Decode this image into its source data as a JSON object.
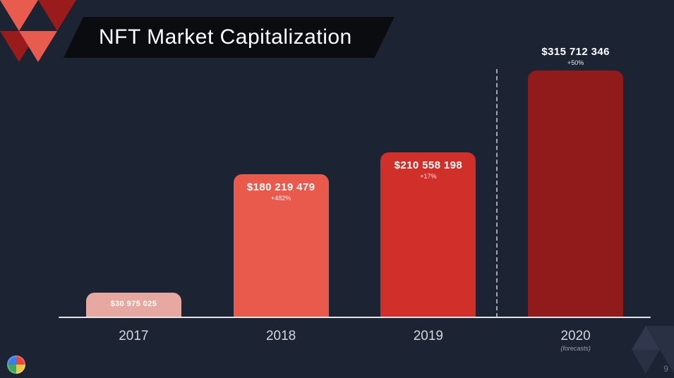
{
  "slide": {
    "title": "NFT Market Capitalization",
    "page_number": "9",
    "background_color": "#1c2333",
    "title_banner_bg": "#0b0c0f",
    "title_color": "#ffffff",
    "title_fontsize": 30
  },
  "chart": {
    "type": "bar",
    "axis_line_color": "#e3e5ea",
    "label_color": "#d4d6dd",
    "divider_after_index": 2,
    "divider_color": "#cfd2da",
    "bars": [
      {
        "year": "2017",
        "year_sub": "",
        "value_label": "$30 975 025",
        "pct_label": "",
        "height_pct": 10,
        "color": "#e7a8a2",
        "label_position": "inside-top",
        "small": true
      },
      {
        "year": "2018",
        "year_sub": "",
        "value_label": "$180 219 479",
        "pct_label": "+482%",
        "height_pct": 58,
        "color": "#e95a4d",
        "label_position": "inside-top",
        "small": false
      },
      {
        "year": "2019",
        "year_sub": "",
        "value_label": "$210 558 198",
        "pct_label": "+17%",
        "height_pct": 67,
        "color": "#d12f29",
        "label_position": "inside-top",
        "small": false
      },
      {
        "year": "2020",
        "year_sub": "(forecasts)",
        "value_label": "$315 712 346",
        "pct_label": "+50%",
        "height_pct": 100,
        "color": "#911a1a",
        "label_position": "outside-top",
        "small": false
      }
    ]
  },
  "decor": {
    "tri_colors": {
      "light": "#e85c50",
      "dark": "#991b1b"
    }
  }
}
